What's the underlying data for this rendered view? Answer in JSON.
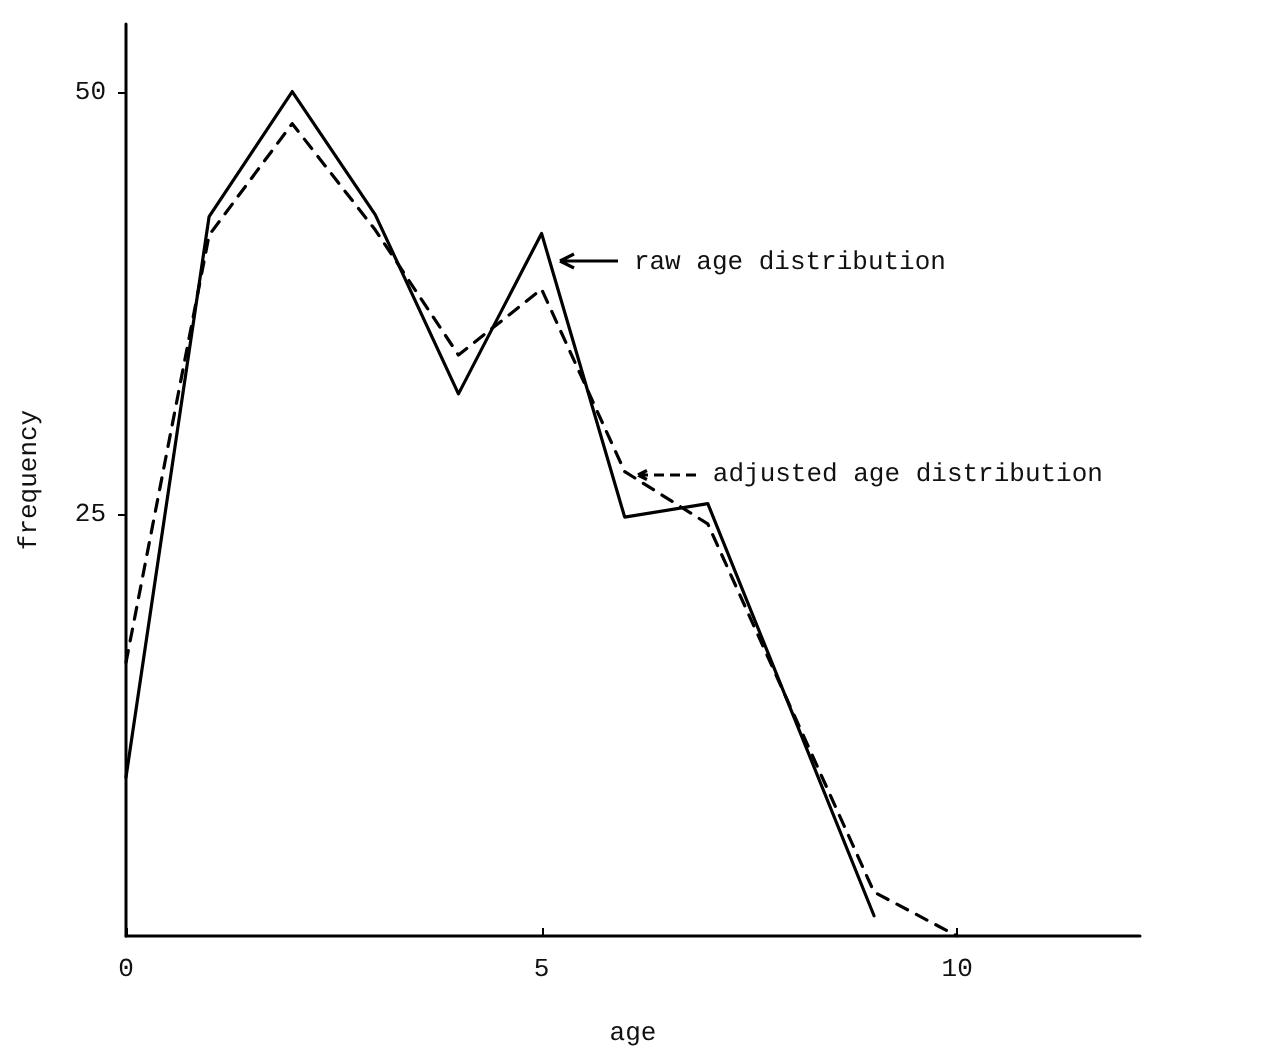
{
  "chart_data": {
    "type": "line",
    "xlabel": "age",
    "ylabel": "frequency",
    "xlim": [
      0,
      12.2
    ],
    "xticks": [
      0,
      5,
      10
    ],
    "ylim": [
      0,
      54
    ],
    "yticks": [
      25,
      50
    ],
    "grid": false,
    "marker": "none",
    "legend": "right",
    "series": [
      {
        "name": "raw age distribution",
        "color": "#000000",
        "line_style": "solid",
        "x": [
          0,
          1,
          2,
          3,
          4,
          5,
          6,
          7,
          9
        ],
        "values": [
          9.4,
          42.6,
          50,
          42.7,
          32.1,
          41.6,
          24.8,
          25.6,
          1.2
        ]
      },
      {
        "name": "adjusted age distribution",
        "color": "#000000",
        "line_style": "dashed",
        "x": [
          0,
          1,
          2,
          3,
          4,
          5,
          6,
          7,
          9,
          10
        ],
        "values": [
          16.2,
          41.5,
          48.1,
          41.8,
          34.4,
          38.3,
          27.5,
          24.4,
          2.6,
          0
        ]
      }
    ]
  }
}
